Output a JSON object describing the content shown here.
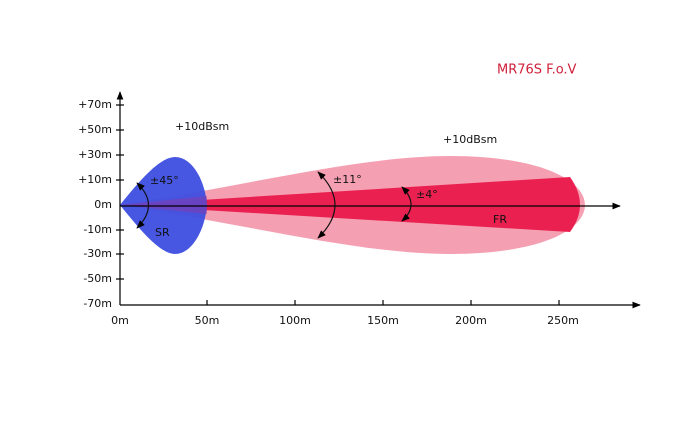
{
  "title": "MR76S  F.o.V",
  "labels": {
    "sr_gain": "+10dBsm",
    "fr_gain": "+10dBsm",
    "sr_angle": "±45°",
    "sr_name": "SR",
    "fr_wide_angle": "±11°",
    "fr_narrow_angle": "±4°",
    "fr_name": "FR"
  },
  "y_axis": {
    "tick_labels": [
      "+70m",
      "+50m",
      "+30m",
      "+10m",
      "0m",
      "-10m",
      "-30m",
      "-50m",
      "-70m"
    ]
  },
  "x_axis": {
    "tick_labels": [
      "0m",
      "50m",
      "100m",
      "150m",
      "200m",
      "250m"
    ]
  }
}
